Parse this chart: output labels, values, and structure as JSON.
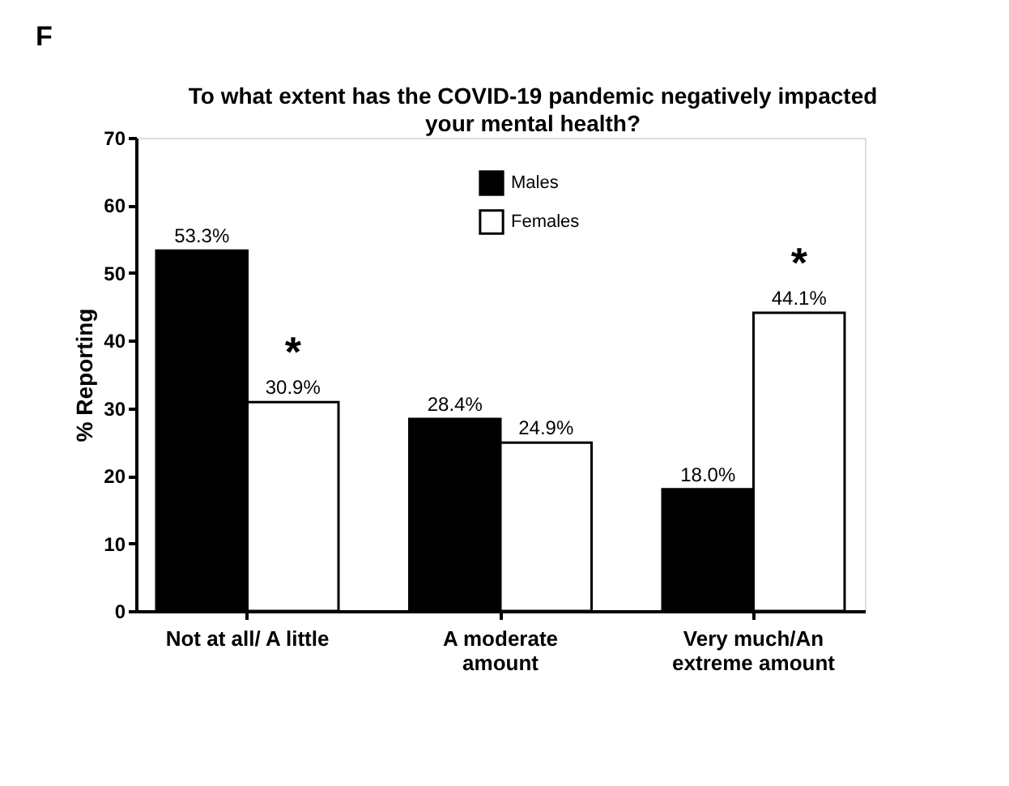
{
  "chart_data": {
    "type": "bar",
    "title": "To what extent has the COVID-19 pandemic negatively impacted\nyour mental health?",
    "ylabel": "% Reporting",
    "categories": [
      "Not at all/ A little",
      "A moderate\namount",
      "Very much/An\nextreme amount"
    ],
    "series": [
      {
        "name": "Males",
        "color": "#000000",
        "values": [
          53.3,
          28.4,
          18.0
        ],
        "value_labels": [
          "53.3%",
          "28.4%",
          "18.0%"
        ]
      },
      {
        "name": "Females",
        "color": "#ffffff",
        "values": [
          30.9,
          24.9,
          44.1
        ],
        "value_labels": [
          "30.9%",
          "24.9%",
          "44.1%"
        ]
      }
    ],
    "ylim": [
      0,
      70
    ],
    "yticks": [
      0,
      10,
      20,
      30,
      40,
      50,
      60,
      70
    ],
    "grid": false,
    "legend": "top",
    "annotations": [
      "F",
      {
        "text": "*",
        "x": "Not at all/ A little",
        "y": 30.9
      },
      {
        "text": "*",
        "x": "Very much/An\nextreme amount",
        "y": 44.1
      }
    ]
  }
}
